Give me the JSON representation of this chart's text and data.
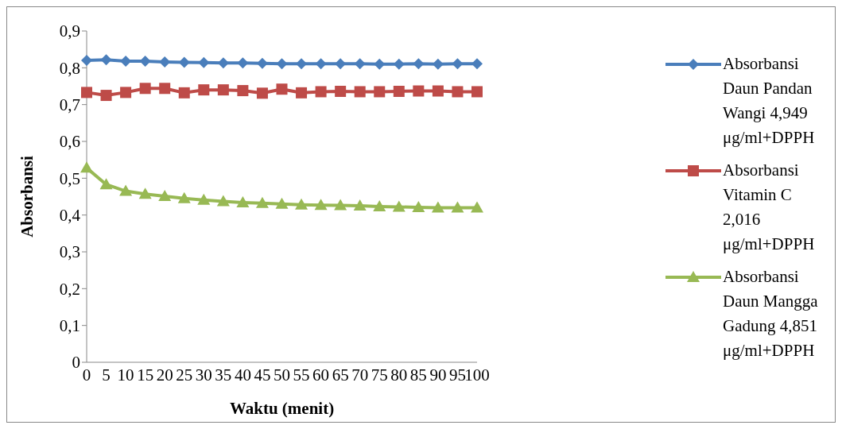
{
  "chart_data": {
    "type": "line",
    "xlabel": "Waktu (menit)",
    "ylabel": "Absorbansi",
    "categories": [
      "0",
      "5",
      "10",
      "15",
      "20",
      "25",
      "30",
      "35",
      "40",
      "45",
      "50",
      "55",
      "60",
      "65",
      "70",
      "75",
      "80",
      "85",
      "90",
      "95",
      "100"
    ],
    "series": [
      {
        "name": "Absorbansi Daun Pandan Wangi 4,949 μg/ml+DPPH",
        "color": "#4a7ebb",
        "marker": "diamond",
        "values": [
          0.82,
          0.822,
          0.818,
          0.818,
          0.816,
          0.815,
          0.814,
          0.813,
          0.813,
          0.812,
          0.811,
          0.811,
          0.811,
          0.811,
          0.811,
          0.81,
          0.81,
          0.811,
          0.81,
          0.811,
          0.811
        ]
      },
      {
        "name": "Absorbansi Vitamin C 2,016 μg/ml+DPPH",
        "color": "#be4b48",
        "marker": "square",
        "values": [
          0.733,
          0.725,
          0.733,
          0.744,
          0.744,
          0.732,
          0.74,
          0.74,
          0.738,
          0.731,
          0.742,
          0.732,
          0.735,
          0.736,
          0.735,
          0.735,
          0.736,
          0.737,
          0.737,
          0.735,
          0.735
        ]
      },
      {
        "name": "Absorbansi Daun Mangga Gadung 4,851 μg/ml+DPPH",
        "color": "#98b954",
        "marker": "triangle",
        "values": [
          0.528,
          0.483,
          0.465,
          0.457,
          0.451,
          0.445,
          0.441,
          0.437,
          0.434,
          0.432,
          0.43,
          0.428,
          0.427,
          0.426,
          0.425,
          0.423,
          0.422,
          0.421,
          0.42,
          0.42,
          0.42
        ]
      }
    ],
    "ylim": [
      0,
      0.9
    ],
    "yticks": [
      {
        "value": 0,
        "label": "0"
      },
      {
        "value": 0.1,
        "label": "0,1"
      },
      {
        "value": 0.2,
        "label": "0,2"
      },
      {
        "value": 0.3,
        "label": "0,3"
      },
      {
        "value": 0.4,
        "label": "0,4"
      },
      {
        "value": 0.5,
        "label": "0,5"
      },
      {
        "value": 0.6,
        "label": "0,6"
      },
      {
        "value": 0.7,
        "label": "0,7"
      },
      {
        "value": 0.8,
        "label": "0,8"
      },
      {
        "value": 0.9,
        "label": "0,9"
      }
    ],
    "grid": false,
    "legend": "right",
    "line_style": "solid"
  }
}
